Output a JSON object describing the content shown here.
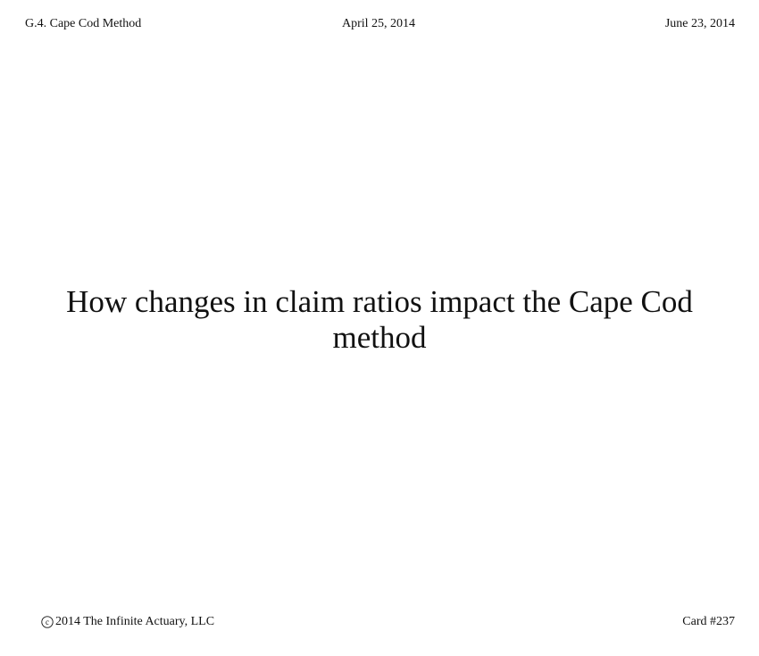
{
  "header": {
    "section": "G.4. Cape Cod Method",
    "date_created": "April 25, 2014",
    "date_updated": "June 23, 2014"
  },
  "main": {
    "title_line1": "How changes in claim ratios impact the Cape Cod",
    "title_line2": "method"
  },
  "footer": {
    "copyright_icon": "copyright-icon",
    "copyright_text": "2014 The Infinite Actuary, LLC",
    "card_number": "Card #237"
  }
}
